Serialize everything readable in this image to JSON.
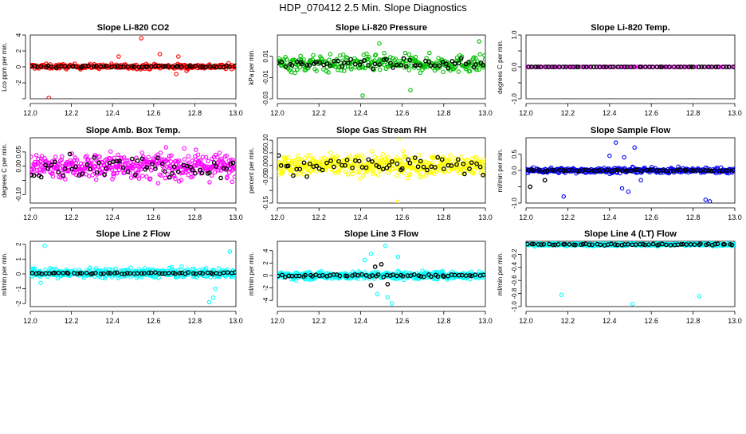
{
  "figure_title": "HDP_070412  2.5 Min. Slope Diagnostics",
  "chart_data": [
    {
      "type": "scatter",
      "title": "Slope Li-820 CO2",
      "ylabel": "Lco₂ ppm per min.",
      "ylabel_text": "Lco ppm per min.",
      "xlabel": "",
      "xlim": [
        12.0,
        13.0
      ],
      "ylim": [
        -4,
        4
      ],
      "xticks": [
        "12.0",
        "12.2",
        "12.4",
        "12.6",
        "12.8",
        "13.0"
      ],
      "yticks": [
        -4,
        -2,
        0,
        2,
        4
      ],
      "ytick_labels": [
        "",
        "-2",
        "0",
        "2",
        "4"
      ],
      "color": "#ff0000",
      "series": [
        {
          "name": "all",
          "center": 0.05,
          "spread": 0.3,
          "density": 300,
          "outliers": [
            [
              12.09,
              -3.9
            ],
            [
              12.54,
              3.6
            ],
            [
              12.43,
              1.3
            ],
            [
              12.63,
              1.6
            ],
            [
              12.71,
              -0.9
            ],
            [
              12.76,
              -0.5
            ],
            [
              12.72,
              1.3
            ]
          ]
        },
        {
          "name": "2.5 min means",
          "center": 0.05,
          "spread": 0.1,
          "density": 60
        }
      ]
    },
    {
      "type": "scatter",
      "title": "Slope Li-820 Pressure",
      "ylabel": "kPa per min.",
      "xlabel": "",
      "xlim": [
        12.0,
        13.0
      ],
      "ylim": [
        -0.03,
        0.03
      ],
      "xticks": [
        "12.0",
        "12.2",
        "12.4",
        "12.6",
        "12.8",
        "13.0"
      ],
      "yticks": [
        -0.03,
        -0.02,
        -0.01,
        0.0,
        0.01,
        0.02
      ],
      "ytick_labels": [
        "-0.03",
        "",
        "-0.01",
        "",
        "0.01",
        ""
      ],
      "ytick_labels_sparse": [
        "-0.03",
        "-0.01",
        "0.01"
      ],
      "ytick_label_values": [
        -0.03,
        -0.01,
        0.01
      ],
      "color": "#00c000",
      "series": [
        {
          "name": "all",
          "center": 0.003,
          "spread": 0.008,
          "density": 300,
          "outliers": [
            [
              12.41,
              -0.027
            ],
            [
              12.64,
              -0.022
            ],
            [
              12.99,
              -0.032
            ],
            [
              12.49,
              0.022
            ],
            [
              12.97,
              0.024
            ]
          ]
        },
        {
          "name": "2.5 min means",
          "center": 0.003,
          "spread": 0.004,
          "density": 60
        }
      ]
    },
    {
      "type": "scatter",
      "title": "Slope Li-820 Temp.",
      "ylabel": "degrees C per min.",
      "xlabel": "",
      "xlim": [
        12.0,
        13.0
      ],
      "ylim": [
        -1.0,
        1.0
      ],
      "xticks": [
        "12.0",
        "12.2",
        "12.4",
        "12.6",
        "12.8",
        "13.0"
      ],
      "ytick_label_values": [
        -1.0,
        -0.5,
        0.0,
        0.5,
        1.0
      ],
      "ytick_labels_sparse": [
        "-1.0",
        "",
        "0.0",
        "",
        "1.0"
      ],
      "color": "#ff00ff",
      "series": [
        {
          "name": "all",
          "center": 0.0,
          "spread": 0.0,
          "density": 110
        },
        {
          "name": "2.5 min means",
          "center": 0.0,
          "spread": 0.0,
          "density": 60
        }
      ]
    },
    {
      "type": "scatter",
      "title": "Slope Amb. Box Temp.",
      "ylabel": "degrees C per min.",
      "xlabel": "",
      "xlim": [
        12.0,
        13.0
      ],
      "ylim": [
        -0.13,
        0.1
      ],
      "xticks": [
        "12.0",
        "12.2",
        "12.4",
        "12.6",
        "12.8",
        "13.0"
      ],
      "ytick_label_values": [
        -0.1,
        -0.05,
        0.0,
        0.05
      ],
      "ytick_labels_sparse": [
        "-0.10",
        "",
        "0.00",
        "0.05"
      ],
      "color": "#ff00ff",
      "series": [
        {
          "name": "all",
          "center": 0.0,
          "spread": 0.045,
          "density": 420
        },
        {
          "name": "2.5 min means",
          "center": 0.0,
          "spread": 0.035,
          "density": 60
        }
      ]
    },
    {
      "type": "scatter",
      "title": "Slope Gas Stream RH",
      "ylabel": "percent per min.",
      "xlabel": "",
      "xlim": [
        12.0,
        13.0
      ],
      "ylim": [
        -0.15,
        0.11
      ],
      "xticks": [
        "12.0",
        "12.2",
        "12.4",
        "12.6",
        "12.8",
        "13.0"
      ],
      "ytick_label_values": [
        -0.15,
        -0.1,
        -0.05,
        0.0,
        0.05,
        0.1
      ],
      "ytick_labels_sparse": [
        "-0.15",
        "",
        "-0.05",
        "0.00",
        "0.05",
        "0.10"
      ],
      "color": "#ffff00",
      "series": [
        {
          "name": "all",
          "center": 0.0,
          "spread": 0.04,
          "density": 460,
          "outliers": [
            [
              12.58,
              -0.145
            ],
            [
              12.59,
              0.11
            ]
          ]
        },
        {
          "name": "2.5 min means",
          "center": 0.0,
          "spread": 0.035,
          "density": 60
        }
      ]
    },
    {
      "type": "scatter",
      "title": "Slope Sample Flow",
      "ylabel": "ml/min per min.",
      "xlabel": "",
      "xlim": [
        12.0,
        13.0
      ],
      "ylim": [
        -1.0,
        1.0
      ],
      "xticks": [
        "12.0",
        "12.2",
        "12.4",
        "12.6",
        "12.8",
        "13.0"
      ],
      "ytick_label_values": [
        -1.0,
        -0.5,
        0.0,
        0.5
      ],
      "ytick_labels_sparse": [
        "-1.0",
        "",
        "0.0",
        "0.5"
      ],
      "color": "#0000ff",
      "series": [
        {
          "name": "all",
          "center": 0.0,
          "spread": 0.08,
          "density": 360,
          "outliers": [
            [
              12.43,
              0.85
            ],
            [
              12.52,
              0.7
            ],
            [
              12.46,
              -0.55
            ],
            [
              12.49,
              -0.65
            ],
            [
              12.86,
              -0.9
            ],
            [
              12.88,
              -0.95
            ],
            [
              12.18,
              -0.8
            ],
            [
              12.4,
              0.45
            ],
            [
              12.47,
              0.4
            ],
            [
              12.55,
              -0.3
            ]
          ]
        },
        {
          "name": "2.5 min means",
          "center": 0.0,
          "spread": 0.03,
          "density": 60,
          "outliers": [
            [
              12.02,
              -0.5
            ],
            [
              12.09,
              -0.3
            ]
          ]
        }
      ]
    },
    {
      "type": "scatter",
      "title": "Slope Line 2 Flow",
      "ylabel": "ml/min per min.",
      "xlabel": "",
      "xlim": [
        12.0,
        13.0
      ],
      "ylim": [
        -2.2,
        2.2
      ],
      "xticks": [
        "12.0",
        "12.2",
        "12.4",
        "12.6",
        "12.8",
        "13.0"
      ],
      "ytick_label_values": [
        -2,
        -1,
        0,
        1,
        2
      ],
      "ytick_labels_sparse": [
        "-2",
        "-1",
        "0",
        "1",
        "2"
      ],
      "color": "#00ffff",
      "series": [
        {
          "name": "all",
          "center": 0.05,
          "spread": 0.3,
          "density": 420,
          "outliers": [
            [
              12.07,
              1.9
            ],
            [
              12.87,
              -1.9
            ],
            [
              12.89,
              -1.6
            ],
            [
              12.97,
              1.5
            ],
            [
              12.05,
              -0.6
            ],
            [
              12.9,
              -1.0
            ]
          ]
        },
        {
          "name": "2.5 min means",
          "center": 0.05,
          "spread": 0.05,
          "density": 60
        }
      ]
    },
    {
      "type": "scatter",
      "title": "Slope Line 3 Flow",
      "ylabel": "ml/min per min.",
      "xlabel": "",
      "xlim": [
        12.0,
        13.0
      ],
      "ylim": [
        -5,
        5.5
      ],
      "xticks": [
        "12.0",
        "12.2",
        "12.4",
        "12.6",
        "12.8",
        "13.0"
      ],
      "ytick_label_values": [
        -4,
        -2,
        0,
        2,
        4
      ],
      "ytick_labels_sparse": [
        "-4",
        "-2",
        "0",
        "2",
        "4"
      ],
      "color": "#00ffff",
      "series": [
        {
          "name": "all",
          "center": 0.0,
          "spread": 0.6,
          "density": 420,
          "outliers": [
            [
              12.52,
              4.8
            ],
            [
              12.45,
              3.5
            ],
            [
              12.42,
              2.5
            ],
            [
              12.48,
              -3.0
            ],
            [
              12.55,
              -4.5
            ],
            [
              12.53,
              -3.5
            ],
            [
              12.58,
              3.0
            ]
          ]
        },
        {
          "name": "2.5 min means",
          "center": 0.0,
          "spread": 0.25,
          "density": 60,
          "outliers": [
            [
              12.45,
              -1.6
            ],
            [
              12.47,
              1.4
            ],
            [
              12.5,
              1.8
            ],
            [
              12.53,
              -1.4
            ]
          ]
        }
      ]
    },
    {
      "type": "scatter",
      "title": "Slope Line 4 (LT) Flow",
      "ylabel": "ml/min per min.",
      "xlabel": "",
      "xlim": [
        12.0,
        13.0
      ],
      "ylim": [
        -1.0,
        0.0
      ],
      "xticks": [
        "12.0",
        "12.2",
        "12.4",
        "12.6",
        "12.8",
        "13.0"
      ],
      "ytick_label_values": [
        -1.0,
        -0.8,
        -0.6,
        -0.4,
        -0.2
      ],
      "ytick_labels_sparse": [
        "-1.0",
        "-0.8",
        "-0.6",
        "-0.4",
        "-0.2"
      ],
      "color": "#00ffff",
      "series": [
        {
          "name": "all",
          "center": -0.05,
          "spread": 0.02,
          "density": 420,
          "outliers": [
            [
              12.17,
              -0.82
            ],
            [
              12.51,
              -0.96
            ],
            [
              12.83,
              -0.84
            ]
          ]
        },
        {
          "name": "2.5 min means",
          "center": -0.05,
          "spread": 0.012,
          "density": 60
        }
      ]
    }
  ]
}
